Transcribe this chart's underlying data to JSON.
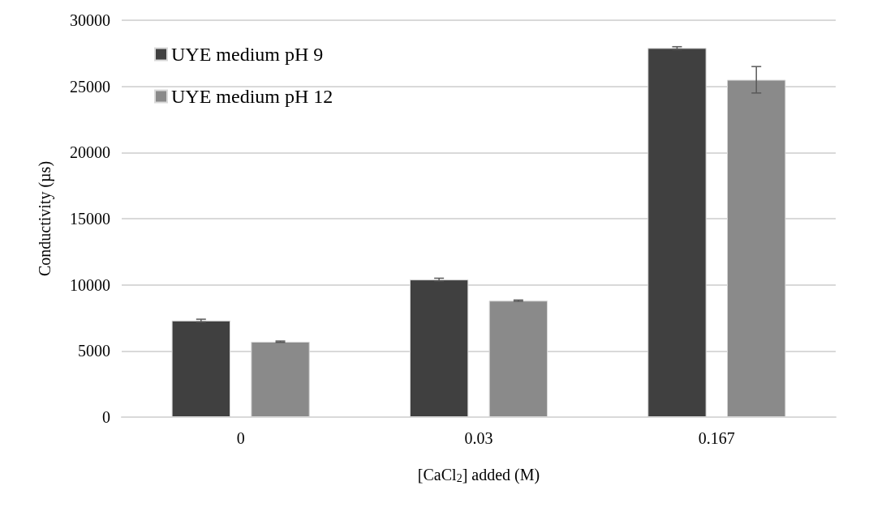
{
  "chart_data": {
    "type": "bar",
    "xlabel": "[CaCl$_{2}$] added (M)",
    "ylabel": "Conductivity (µs)",
    "categories": [
      "0",
      "0.03",
      "0.167"
    ],
    "series": [
      {
        "name": "UYE medium pH 9",
        "color": "#404040",
        "values": [
          7300,
          10400,
          27900
        ],
        "errors": [
          100,
          100,
          100
        ]
      },
      {
        "name": "UYE medium pH 12",
        "color": "#8a8a8a",
        "values": [
          5700,
          8800,
          25500
        ],
        "errors": [
          50,
          50,
          1000
        ]
      }
    ],
    "ylim": [
      0,
      30000
    ],
    "yticks": [
      0,
      5000,
      10000,
      15000,
      20000,
      25000,
      30000
    ],
    "grid": "y",
    "legend": "top left"
  }
}
